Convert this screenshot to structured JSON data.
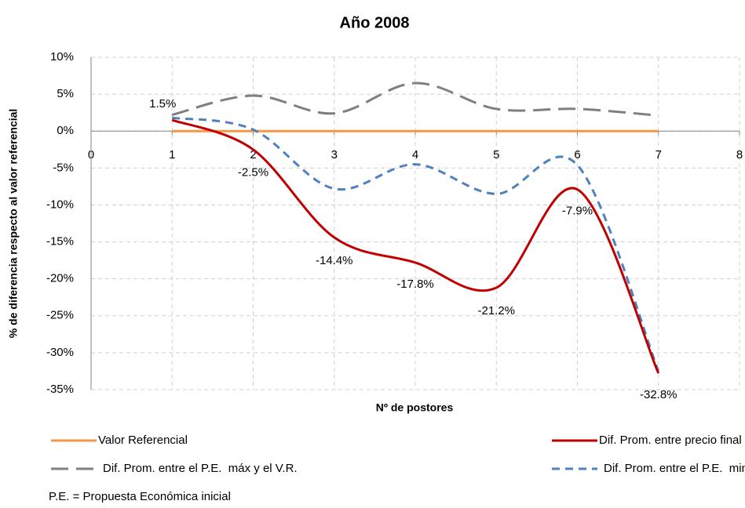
{
  "chart_data": {
    "type": "line",
    "title": "Año 2008",
    "x_label": "Nº de postores",
    "y_label": "% de diferencia respecto al valor referencial",
    "note": "P.E. = Propuesta Económica inicial",
    "x": [
      1,
      2,
      3,
      4,
      5,
      6,
      7
    ],
    "xlim": [
      0,
      8
    ],
    "xticks": [
      0,
      1,
      2,
      3,
      4,
      5,
      6,
      7,
      8
    ],
    "ylim": [
      -35,
      10
    ],
    "yticks": [
      {
        "value": -35,
        "label": "-35%"
      },
      {
        "value": -30,
        "label": "-30%"
      },
      {
        "value": -25,
        "label": "-25%"
      },
      {
        "value": -20,
        "label": "-20%"
      },
      {
        "value": -15,
        "label": "-15%"
      },
      {
        "value": -10,
        "label": "-10%"
      },
      {
        "value": -5,
        "label": "-5%"
      },
      {
        "value": 0,
        "label": "0%"
      },
      {
        "value": 5,
        "label": "5%"
      },
      {
        "value": 10,
        "label": "10%"
      }
    ],
    "grid": true,
    "smooth": true,
    "legend": "bottom",
    "series": [
      {
        "name": "Valor Referencial",
        "color": "#F79646",
        "dash": "solid",
        "values": [
          0,
          0,
          0,
          0,
          0,
          0,
          0
        ]
      },
      {
        "name": "Dif. Prom. entre precio final y V.R.",
        "color": "#C00000",
        "dash": "solid",
        "values": [
          1.5,
          -2.5,
          -14.4,
          -17.8,
          -21.2,
          -7.9,
          -32.8
        ],
        "value_labels": [
          "1.5%",
          "-2.5%",
          "-14.4%",
          "-17.8%",
          "-21.2%",
          "-7.9%",
          "-32.8%"
        ]
      },
      {
        "name": "Dif. Prom. entre el P.E.  máx y el V.R.",
        "color": "#7F7F7F",
        "dash": "long-dash",
        "values": [
          2.2,
          4.8,
          2.4,
          6.5,
          3.0,
          3.0,
          2.1
        ]
      },
      {
        "name": "Dif. Prom. entre el P.E.  min y el V.R.",
        "color": "#4F81BD",
        "dash": "dash",
        "values": [
          1.8,
          0.2,
          -7.8,
          -4.5,
          -8.5,
          -4.6,
          -32.5
        ]
      }
    ]
  }
}
